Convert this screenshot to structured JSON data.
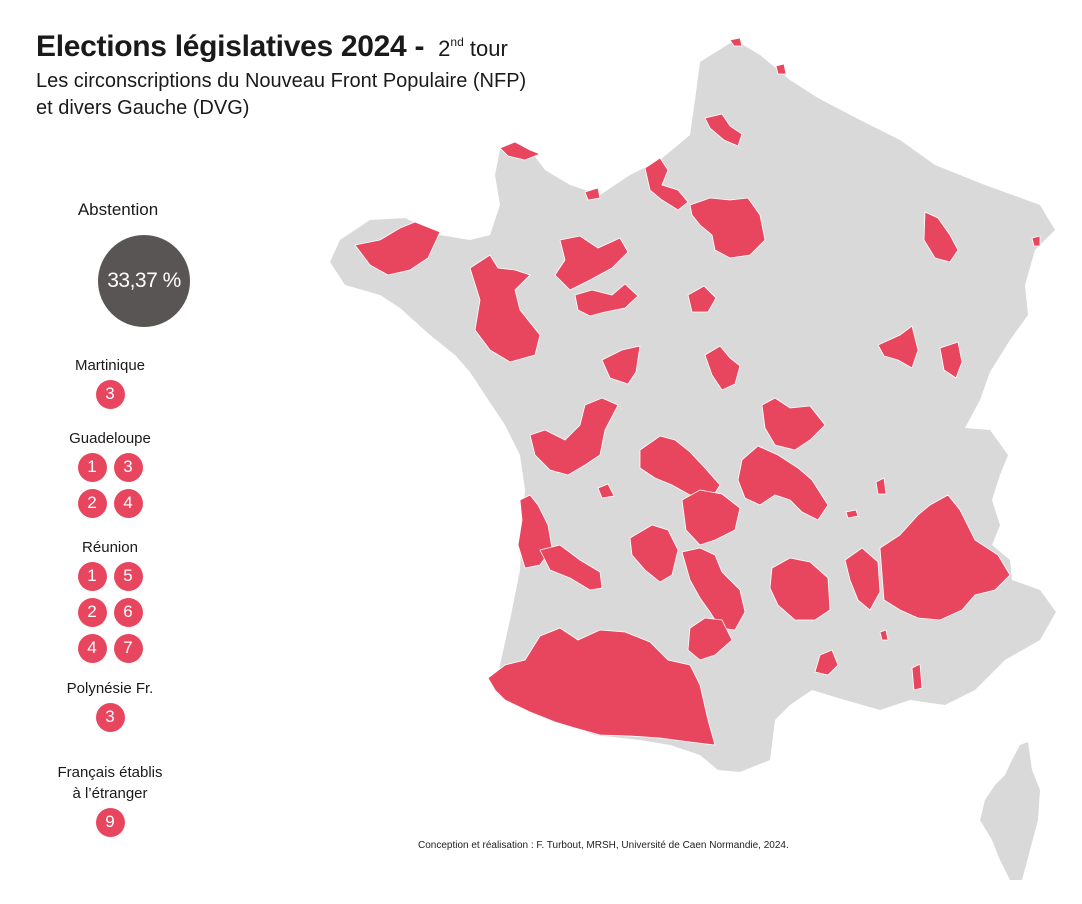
{
  "title": {
    "main": "Elections législatives 2024 -",
    "round_num": "2",
    "round_sup": "nd",
    "round_text": "tour",
    "subtitle_line1": "Les circonscriptions du Nouveau Front Populaire (NFP)",
    "subtitle_line2": "et divers Gauche (DVG)"
  },
  "abstention": {
    "label": "Abstention",
    "value": "33,37 %"
  },
  "territories": [
    {
      "name": "Martinique",
      "seats": [
        "3"
      ]
    },
    {
      "name": "Guadeloupe",
      "seats": [
        "1",
        "3",
        "2",
        "4"
      ]
    },
    {
      "name": "Réunion",
      "seats": [
        "1",
        "5",
        "2",
        "6",
        "4",
        "7"
      ]
    },
    {
      "name": "Polynésie Fr.",
      "seats": [
        "3"
      ]
    },
    {
      "name": "Français établis\nà l’étranger",
      "name_line1": "Français établis",
      "name_line2": "à l’étranger",
      "seats": [
        "9"
      ]
    }
  ],
  "credits": "Conception et réalisation : F. Turbout, MRSH, Université de Caen Normandie, 2024.",
  "colors": {
    "land": "#d9d9d9",
    "nfp": "#e8465f",
    "abstention": "#5a5555"
  }
}
